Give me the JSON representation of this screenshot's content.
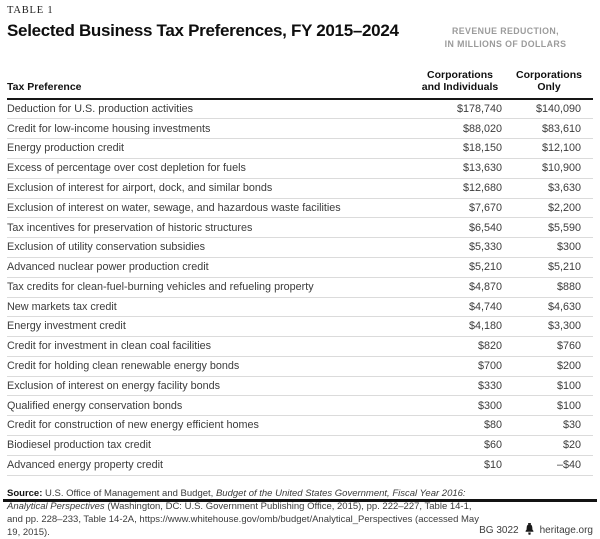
{
  "figure": {
    "kicker": "TABLE 1",
    "title": "Selected Business Tax Preferences, FY 2015–2024",
    "units_note": {
      "line1": "REVENUE REDUCTION,",
      "line2": "IN MILLIONS OF DOLLARS"
    }
  },
  "table": {
    "header": {
      "col1": "Tax Preference",
      "col2": {
        "line1": "Corporations",
        "line2": "and Individuals"
      },
      "col3": {
        "line1": "Corporations",
        "line2": "Only"
      }
    },
    "rows": [
      {
        "label": "Deduction for U.S. production activities",
        "corp_and_ind": "$178,740",
        "corp_only": "$140,090"
      },
      {
        "label": "Credit for low-income housing investments",
        "corp_and_ind": "$88,020",
        "corp_only": "$83,610"
      },
      {
        "label": "Energy production credit",
        "corp_and_ind": "$18,150",
        "corp_only": "$12,100"
      },
      {
        "label": "Excess of percentage over cost depletion for fuels",
        "corp_and_ind": "$13,630",
        "corp_only": "$10,900"
      },
      {
        "label": "Exclusion of interest for airport, dock, and similar bonds",
        "corp_and_ind": "$12,680",
        "corp_only": "$3,630"
      },
      {
        "label": "Exclusion of interest on water, sewage, and hazardous waste facilities",
        "corp_and_ind": "$7,670",
        "corp_only": "$2,200"
      },
      {
        "label": "Tax incentives for preservation of historic structures",
        "corp_and_ind": "$6,540",
        "corp_only": "$5,590"
      },
      {
        "label": "Exclusion of utility conservation subsidies",
        "corp_and_ind": "$5,330",
        "corp_only": "$300"
      },
      {
        "label": "Advanced nuclear power production credit",
        "corp_and_ind": "$5,210",
        "corp_only": "$5,210"
      },
      {
        "label": "Tax credits for clean-fuel-burning vehicles and refueling property",
        "corp_and_ind": "$4,870",
        "corp_only": "$880"
      },
      {
        "label": "New markets tax credit",
        "corp_and_ind": "$4,740",
        "corp_only": "$4,630"
      },
      {
        "label": "Energy investment credit",
        "corp_and_ind": "$4,180",
        "corp_only": "$3,300"
      },
      {
        "label": "Credit for investment in clean coal facilities",
        "corp_and_ind": "$820",
        "corp_only": "$760"
      },
      {
        "label": "Credit for holding clean renewable energy bonds",
        "corp_and_ind": "$700",
        "corp_only": "$200"
      },
      {
        "label": "Exclusion of interest on energy facility bonds",
        "corp_and_ind": "$330",
        "corp_only": "$100"
      },
      {
        "label": "Qualified energy conservation bonds",
        "corp_and_ind": "$300",
        "corp_only": "$100"
      },
      {
        "label": "Credit for construction of new energy efficient homes",
        "corp_and_ind": "$80",
        "corp_only": "$30"
      },
      {
        "label": "Biodiesel production tax credit",
        "corp_and_ind": "$60",
        "corp_only": "$20"
      },
      {
        "label": "Advanced energy property credit",
        "corp_and_ind": "$10",
        "corp_only": "–$40"
      }
    ]
  },
  "footer": {
    "source": {
      "label": "Source:",
      "part1": " U.S. Office of Management and Budget, ",
      "italic": "Budget of the United States Government, Fiscal Year 2016: Analytical Perspectives",
      "part2": " (Washington, DC: U.S. Government Publishing Office, 2015), pp. 222–227, Table 14-1, and pp. 228–233, Table 14-2A, https://www.whitehouse.gov/omb/budget/Analytical_Perspectives (accessed May 19, 2015)."
    },
    "doc_id": "BG 3022",
    "website": "heritage.org",
    "bell_icon": "heritage-liberty-bell"
  },
  "colors": {
    "heading_text": "#0e0e0e",
    "body_text": "#3c3c3c",
    "muted_gray": "#9b9b9b",
    "heavy_rule": "#161616",
    "light_rule": "#dbdbdb",
    "background": "#ffffff"
  },
  "chart_data": {
    "type": "table",
    "title": "Selected Business Tax Preferences, FY 2015–2024",
    "units": "Revenue reduction, in millions of dollars",
    "columns": [
      "Tax Preference",
      "Corporations and Individuals",
      "Corporations Only"
    ],
    "rows": [
      [
        "Deduction for U.S. production activities",
        178740,
        140090
      ],
      [
        "Credit for low-income housing investments",
        88020,
        83610
      ],
      [
        "Energy production credit",
        18150,
        12100
      ],
      [
        "Excess of percentage over cost depletion for fuels",
        13630,
        10900
      ],
      [
        "Exclusion of interest for airport, dock, and similar bonds",
        12680,
        3630
      ],
      [
        "Exclusion of interest on water, sewage, and hazardous waste facilities",
        7670,
        2200
      ],
      [
        "Tax incentives for preservation of historic structures",
        6540,
        5590
      ],
      [
        "Exclusion of utility conservation subsidies",
        5330,
        300
      ],
      [
        "Advanced nuclear power production credit",
        5210,
        5210
      ],
      [
        "Tax credits for clean-fuel-burning vehicles and refueling property",
        4870,
        880
      ],
      [
        "New markets tax credit",
        4740,
        4630
      ],
      [
        "Energy investment credit",
        4180,
        3300
      ],
      [
        "Credit for investment in clean coal facilities",
        820,
        760
      ],
      [
        "Credit for holding clean renewable energy bonds",
        700,
        200
      ],
      [
        "Exclusion of interest on energy facility bonds",
        330,
        100
      ],
      [
        "Qualified energy conservation bonds",
        300,
        100
      ],
      [
        "Credit for construction of new energy efficient homes",
        80,
        30
      ],
      [
        "Biodiesel production tax credit",
        60,
        20
      ],
      [
        "Advanced energy property credit",
        10,
        -40
      ]
    ]
  }
}
